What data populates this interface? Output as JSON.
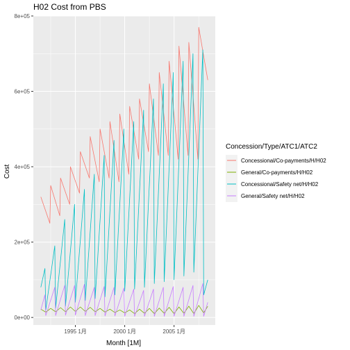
{
  "chart_data": {
    "type": "line",
    "title": "H02 Cost from PBS",
    "xlabel": "Month [1M]",
    "ylabel": "Cost",
    "x_range": [
      "1991-07",
      "2008-06"
    ],
    "ylim": [
      -20000,
      800000
    ],
    "x_ticks": [
      {
        "date": "1995-01",
        "label": "1995 1月"
      },
      {
        "date": "2000-01",
        "label": "2000 1月"
      },
      {
        "date": "2005-01",
        "label": "2005 1月"
      }
    ],
    "y_ticks": [
      {
        "value": 0,
        "label": "0e+00"
      },
      {
        "value": 200000,
        "label": "2e+05"
      },
      {
        "value": 400000,
        "label": "4e+05"
      },
      {
        "value": 600000,
        "label": "6e+05"
      },
      {
        "value": 800000,
        "label": "8e+05"
      }
    ],
    "legend": {
      "title": "Concession/Type/ATC1/ATC2",
      "placement": "right"
    },
    "grid": true,
    "series": [
      {
        "name": "Concessional/Co-payments/H/H02",
        "color": "#F8766D",
        "x": [
          "1991-07",
          "1992-06",
          "1992-07",
          "1993-06",
          "1993-07",
          "1994-06",
          "1994-07",
          "1995-06",
          "1995-07",
          "1996-06",
          "1996-07",
          "1997-06",
          "1997-07",
          "1998-06",
          "1998-07",
          "1999-06",
          "1999-07",
          "2000-06",
          "2000-07",
          "2001-06",
          "2001-07",
          "2002-06",
          "2002-07",
          "2003-06",
          "2003-07",
          "2004-06",
          "2004-07",
          "2005-06",
          "2005-07",
          "2006-06",
          "2006-07",
          "2007-06",
          "2007-07",
          "2008-06"
        ],
        "values": [
          320000,
          250000,
          350000,
          270000,
          370000,
          300000,
          400000,
          330000,
          440000,
          370000,
          480000,
          360000,
          500000,
          370000,
          520000,
          360000,
          540000,
          380000,
          560000,
          420000,
          580000,
          440000,
          620000,
          430000,
          650000,
          430000,
          680000,
          420000,
          720000,
          430000,
          730000,
          420000,
          770000,
          630000
        ]
      },
      {
        "name": "General/Co-payments/H/H02",
        "color": "#7CAE00",
        "x": [
          "1991-07",
          "1992-01",
          "1992-07",
          "1993-01",
          "1993-07",
          "1994-01",
          "1994-07",
          "1995-01",
          "1995-07",
          "1996-01",
          "1996-07",
          "1997-01",
          "1997-07",
          "1998-01",
          "1998-07",
          "1999-01",
          "1999-07",
          "2000-01",
          "2000-07",
          "2001-01",
          "2001-07",
          "2002-01",
          "2002-07",
          "2003-01",
          "2003-07",
          "2004-01",
          "2004-07",
          "2005-01",
          "2005-07",
          "2006-01",
          "2006-07",
          "2007-01",
          "2007-07",
          "2008-01",
          "2008-06"
        ],
        "values": [
          22000,
          14000,
          24000,
          15000,
          26000,
          15000,
          28000,
          16000,
          28000,
          16000,
          27000,
          15000,
          24000,
          14000,
          22000,
          13000,
          20000,
          12000,
          20000,
          10000,
          22000,
          11000,
          24000,
          10000,
          25000,
          11000,
          27000,
          10000,
          28000,
          11000,
          30000,
          10000,
          32000,
          12000,
          30000
        ]
      },
      {
        "name": "Concessional/Safety net/H/H02",
        "color": "#00BFC4",
        "x": [
          "1991-07",
          "1991-12",
          "1992-01",
          "1992-12",
          "1993-01",
          "1993-12",
          "1994-01",
          "1994-12",
          "1995-01",
          "1995-12",
          "1996-01",
          "1996-12",
          "1997-01",
          "1997-12",
          "1998-01",
          "1998-12",
          "1999-01",
          "1999-12",
          "2000-01",
          "2000-12",
          "2001-01",
          "2001-12",
          "2002-01",
          "2002-12",
          "2003-01",
          "2003-12",
          "2004-01",
          "2004-12",
          "2005-01",
          "2005-12",
          "2006-01",
          "2006-12",
          "2007-01",
          "2007-12",
          "2008-01",
          "2008-06"
        ],
        "values": [
          80000,
          130000,
          20000,
          190000,
          25000,
          260000,
          30000,
          300000,
          40000,
          340000,
          45000,
          380000,
          50000,
          430000,
          55000,
          470000,
          60000,
          500000,
          70000,
          520000,
          75000,
          550000,
          80000,
          580000,
          90000,
          620000,
          95000,
          650000,
          100000,
          680000,
          110000,
          700000,
          120000,
          710000,
          60000,
          100000
        ]
      },
      {
        "name": "General/Safety net/H/H02",
        "color": "#C77CFF",
        "x": [
          "1991-07",
          "1991-12",
          "1992-01",
          "1992-12",
          "1993-01",
          "1993-12",
          "1994-01",
          "1994-12",
          "1995-01",
          "1995-12",
          "1996-01",
          "1996-12",
          "1997-01",
          "1997-12",
          "1998-01",
          "1998-12",
          "1999-01",
          "1999-12",
          "2000-01",
          "2000-12",
          "2001-01",
          "2001-12",
          "2002-01",
          "2002-12",
          "2003-01",
          "2003-12",
          "2004-01",
          "2004-12",
          "2005-01",
          "2005-12",
          "2006-01",
          "2006-12",
          "2007-01",
          "2007-12",
          "2008-01",
          "2008-06"
        ],
        "values": [
          20000,
          60000,
          5000,
          80000,
          5000,
          85000,
          6000,
          85000,
          6000,
          88000,
          5000,
          80000,
          5000,
          82000,
          4000,
          80000,
          4000,
          78000,
          3000,
          75000,
          3000,
          72000,
          3000,
          75000,
          3000,
          80000,
          3000,
          82000,
          3000,
          80000,
          3000,
          85000,
          3000,
          90000,
          3000,
          40000
        ]
      }
    ]
  }
}
